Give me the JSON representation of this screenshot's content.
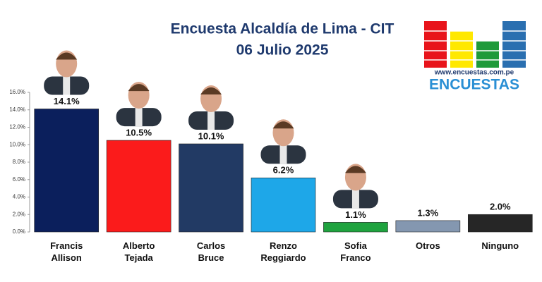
{
  "chart_data": {
    "type": "bar",
    "title": "Encuesta Alcaldía de Lima - CIT",
    "subtitle": "06 Julio 2025",
    "logo": {
      "url": "www.encuestas.com.pe",
      "name": "ENCUESTAS"
    },
    "categories": [
      "Francis Allison",
      "Alberto Tejada",
      "Carlos Bruce",
      "Renzo Reggiardo",
      "Sofia Franco",
      "Otros",
      "Ninguno"
    ],
    "values": [
      14.1,
      10.5,
      10.1,
      6.2,
      1.1,
      1.3,
      2.0
    ],
    "value_labels": [
      "14.1%",
      "10.5%",
      "10.1%",
      "6.2%",
      "1.1%",
      "1.3%",
      "2.0%"
    ],
    "colors": [
      "#0b1f5c",
      "#fb1b1b",
      "#223a64",
      "#1ea7e8",
      "#1fa33f",
      "#8497b0",
      "#262626"
    ],
    "ylim": [
      0,
      16
    ],
    "yticks": [
      {
        "value": 0,
        "label": "0.0%"
      },
      {
        "value": 2,
        "label": "2.0%"
      },
      {
        "value": 4,
        "label": "4.0%"
      },
      {
        "value": 6,
        "label": "6.0%"
      },
      {
        "value": 8,
        "label": "8.0%"
      },
      {
        "value": 10,
        "label": "10.0%"
      },
      {
        "value": 12,
        "label": "12.0%"
      },
      {
        "value": 14,
        "label": "14.0%"
      },
      {
        "value": 16,
        "label": "16.0%"
      }
    ],
    "grid": false
  }
}
